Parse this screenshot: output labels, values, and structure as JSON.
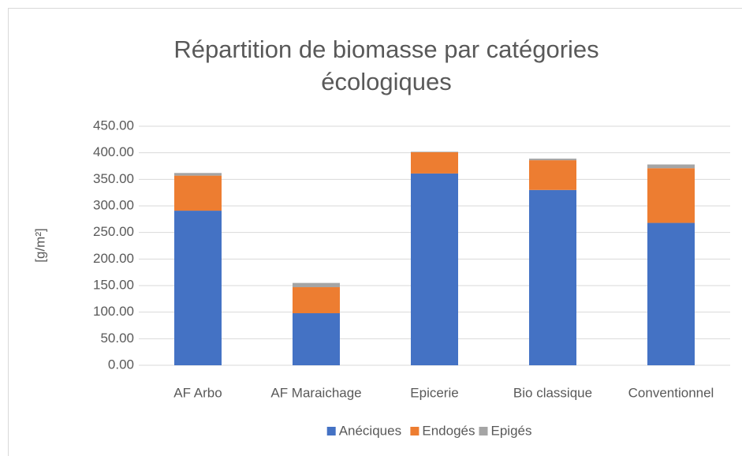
{
  "chart_data": {
    "type": "stacked_bar",
    "title": "Répartition de biomasse par catégories écologiques",
    "y_label": "[g/m²]",
    "categories": [
      "AF Arbo",
      "AF Maraichage",
      "Epicerie",
      "Bio classique",
      "Conventionnel"
    ],
    "series": [
      {
        "name": "Anéciques",
        "color": "#4472c4",
        "values": [
          291,
          98,
          361,
          330,
          268
        ]
      },
      {
        "name": "Endogés",
        "color": "#ed7d31",
        "values": [
          66,
          49,
          40,
          56,
          103
        ]
      },
      {
        "name": "Epigés",
        "color": "#a5a5a5",
        "values": [
          5,
          8,
          1,
          3,
          7
        ]
      }
    ],
    "ylim": [
      0,
      450
    ],
    "yticks": [
      {
        "value": 0,
        "label": "0.00"
      },
      {
        "value": 50,
        "label": "50.00"
      },
      {
        "value": 100,
        "label": "100.00"
      },
      {
        "value": 150,
        "label": "150.00"
      },
      {
        "value": 200,
        "label": "200.00"
      },
      {
        "value": 250,
        "label": "250.00"
      },
      {
        "value": 300,
        "label": "300.00"
      },
      {
        "value": 350,
        "label": "350.00"
      },
      {
        "value": 400,
        "label": "400.00"
      },
      {
        "value": 450,
        "label": "450.00"
      }
    ],
    "grid": true,
    "legend": "bottom"
  }
}
